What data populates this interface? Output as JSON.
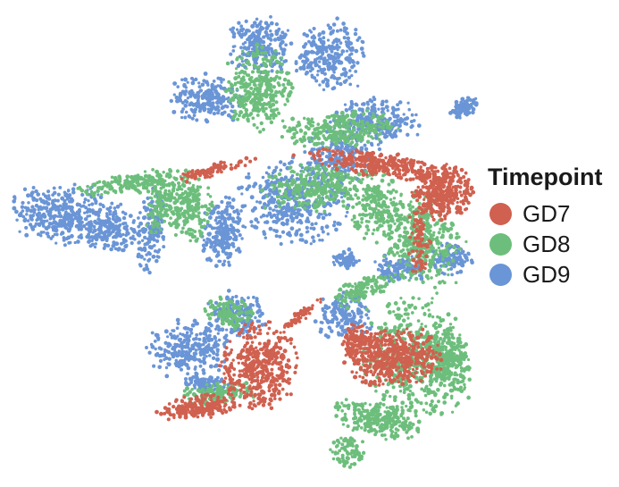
{
  "chart_data": {
    "type": "scatter",
    "title": "",
    "xlabel": "",
    "ylabel": "",
    "axes_visible": false,
    "grid": false,
    "legend": {
      "title": "Timepoint",
      "placement": "right",
      "entries": [
        {
          "name": "GD7",
          "color": "#D0604F"
        },
        {
          "name": "GD8",
          "color": "#6DBE7C"
        },
        {
          "name": "GD9",
          "color": "#6A95D6"
        }
      ]
    },
    "series": [
      {
        "name": "GD7",
        "color": "#D0604F"
      },
      {
        "name": "GD8",
        "color": "#6DBE7C"
      },
      {
        "name": "GD9",
        "color": "#6A95D6"
      }
    ]
  }
}
